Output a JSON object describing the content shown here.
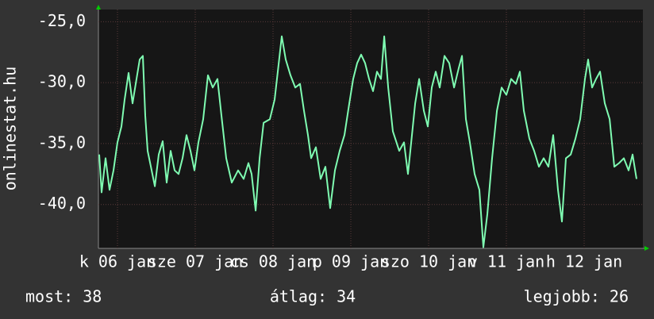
{
  "chart_data": {
    "type": "line",
    "y_axis_label": "onlinestat.hu",
    "xlim": [
      5.755,
      12.755
    ],
    "ylim": [
      -43.6,
      -24.0
    ],
    "yticks": [
      {
        "value": -25,
        "label": "-25,0"
      },
      {
        "value": -30,
        "label": "-30,0"
      },
      {
        "value": -35,
        "label": "-35,0"
      },
      {
        "value": -40,
        "label": "-40,0"
      }
    ],
    "xticks": [
      {
        "value": 6,
        "label": "k 06 jan"
      },
      {
        "value": 7,
        "label": "sze 07 jan"
      },
      {
        "value": 8,
        "label": "cs 08 jan"
      },
      {
        "value": 9,
        "label": "p 09 jan"
      },
      {
        "value": 10,
        "label": "szo 10 jan"
      },
      {
        "value": 11,
        "label": "v 11 jan"
      },
      {
        "value": 12,
        "label": "h 12 jan"
      }
    ],
    "grid": true,
    "series": [
      {
        "color": "#7ffcb2",
        "x": [
          5.765,
          5.796,
          5.847,
          5.898,
          5.949,
          6.0,
          6.051,
          6.092,
          6.143,
          6.194,
          6.245,
          6.286,
          6.326,
          6.357,
          6.388,
          6.429,
          6.48,
          6.531,
          6.582,
          6.633,
          6.684,
          6.735,
          6.786,
          6.837,
          6.888,
          6.939,
          6.99,
          7.041,
          7.102,
          7.163,
          7.224,
          7.286,
          7.337,
          7.398,
          7.469,
          7.551,
          7.622,
          7.684,
          7.724,
          7.776,
          7.827,
          7.878,
          7.959,
          8.02,
          8.061,
          8.112,
          8.163,
          8.224,
          8.286,
          8.347,
          8.398,
          8.449,
          8.49,
          8.551,
          8.612,
          8.673,
          8.735,
          8.796,
          8.857,
          8.918,
          8.98,
          9.031,
          9.082,
          9.133,
          9.184,
          9.235,
          9.286,
          9.337,
          9.388,
          9.429,
          9.48,
          9.541,
          9.622,
          9.684,
          9.735,
          9.776,
          9.827,
          9.878,
          9.939,
          9.99,
          10.041,
          10.092,
          10.143,
          10.204,
          10.265,
          10.327,
          10.388,
          10.429,
          10.48,
          10.531,
          10.592,
          10.653,
          10.704,
          10.755,
          10.816,
          10.878,
          10.939,
          11.0,
          11.061,
          11.122,
          11.173,
          11.224,
          11.296,
          11.357,
          11.418,
          11.48,
          11.541,
          11.602,
          11.663,
          11.714,
          11.765,
          11.827,
          11.888,
          11.949,
          12.01,
          12.051,
          12.102,
          12.153,
          12.204,
          12.265,
          12.327,
          12.388,
          12.449,
          12.51,
          12.571,
          12.622,
          12.673
        ],
        "values": [
          -35.9,
          -39.0,
          -36.2,
          -38.8,
          -37.2,
          -34.9,
          -33.6,
          -31.4,
          -29.2,
          -31.7,
          -29.7,
          -28.1,
          -27.8,
          -32.7,
          -35.6,
          -36.9,
          -38.5,
          -35.9,
          -34.8,
          -38.2,
          -35.6,
          -37.2,
          -37.5,
          -36.2,
          -34.3,
          -35.6,
          -37.2,
          -34.9,
          -33.0,
          -29.4,
          -30.4,
          -29.7,
          -32.7,
          -36.2,
          -38.2,
          -37.2,
          -37.9,
          -36.6,
          -37.5,
          -40.5,
          -36.2,
          -33.3,
          -33.0,
          -31.4,
          -29.1,
          -26.2,
          -28.1,
          -29.4,
          -30.4,
          -30.1,
          -32.3,
          -34.3,
          -36.2,
          -35.3,
          -37.9,
          -36.9,
          -40.3,
          -37.2,
          -35.6,
          -34.3,
          -31.7,
          -29.7,
          -28.4,
          -27.7,
          -28.4,
          -29.7,
          -30.7,
          -29.1,
          -29.7,
          -26.2,
          -30.4,
          -34.0,
          -35.6,
          -34.9,
          -37.5,
          -34.9,
          -31.7,
          -29.7,
          -32.3,
          -33.6,
          -30.4,
          -29.1,
          -30.4,
          -27.8,
          -28.4,
          -30.4,
          -28.8,
          -27.8,
          -33.0,
          -34.9,
          -37.5,
          -38.8,
          -43.5,
          -40.8,
          -36.2,
          -32.3,
          -30.4,
          -31.0,
          -29.7,
          -30.1,
          -29.1,
          -32.3,
          -34.6,
          -35.6,
          -36.9,
          -36.2,
          -36.9,
          -34.3,
          -38.8,
          -41.4,
          -36.2,
          -35.9,
          -34.6,
          -33.0,
          -29.7,
          -28.1,
          -30.4,
          -29.7,
          -29.1,
          -31.7,
          -33.0,
          -36.9,
          -36.6,
          -36.2,
          -37.2,
          -35.9,
          -37.9
        ]
      }
    ],
    "stats": [
      "most: 38",
      "átlag: 34",
      "legjobb: 26"
    ]
  }
}
